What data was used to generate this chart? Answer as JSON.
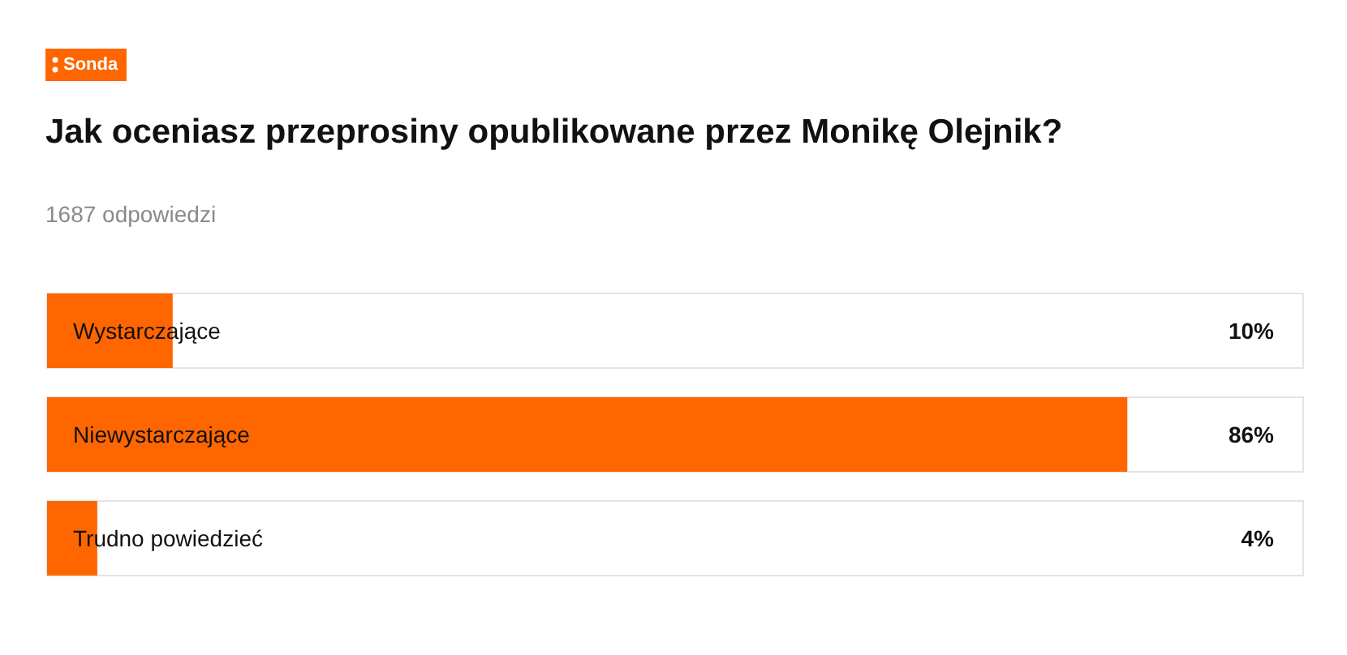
{
  "chart_data": {
    "type": "bar",
    "orientation": "horizontal",
    "annotations": [
      "Sonda"
    ],
    "title": "Jak oceniasz przeprosiny opublikowane przez Monikę Olejnik?",
    "subtitle": "1687 odpowiedzi",
    "categories": [
      "Wystarczające",
      "Niewystarczające",
      "Trudno powiedzieć"
    ],
    "values": [
      10,
      86,
      4
    ],
    "value_labels": [
      "10%",
      "86%",
      "4%"
    ],
    "color": "#ff6600",
    "xlim": [
      0,
      100
    ],
    "tick_labels": false
  }
}
